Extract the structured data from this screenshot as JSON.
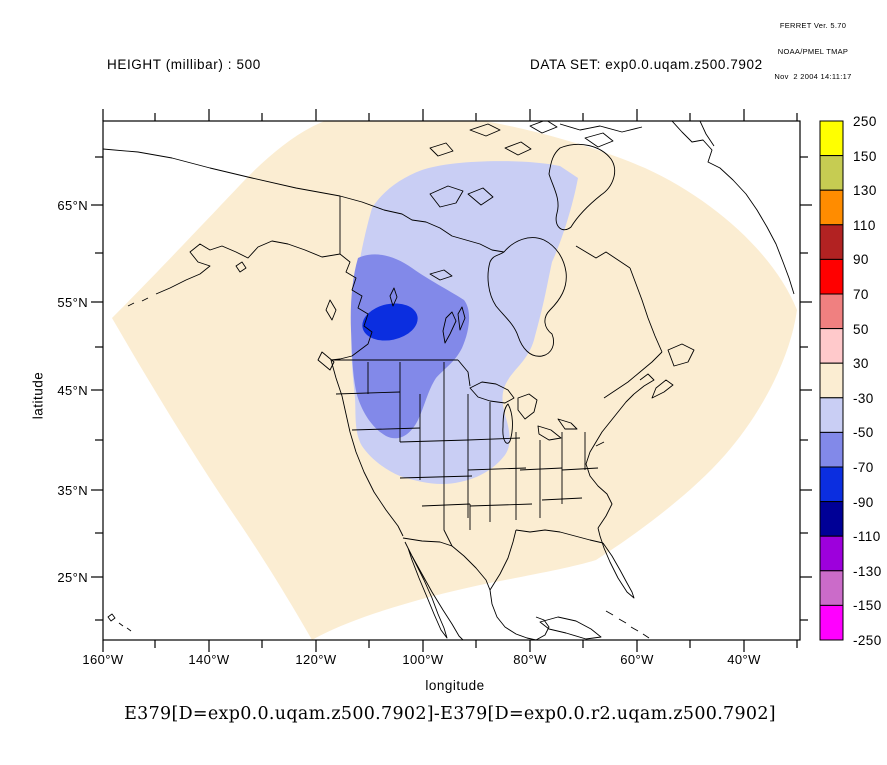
{
  "window": {
    "background": "#FFFFFF"
  },
  "ferret_header": {
    "lines": [
      "FERRET Ver. 5.70",
      "NOAA/PMEL TMAP",
      "Nov  2 2004 14:11:17"
    ]
  },
  "titles": {
    "field": "HEIGHT (millibar) : 500",
    "dataset": "DATA SET: exp0.0.uqam.z500.7902"
  },
  "caption": "E379[D=exp0.0.uqam.z500.7902]-E379[D=exp0.0.r2.uqam.z500.7902]",
  "axes": {
    "x": {
      "title": "longitude",
      "tick_labels": [
        "160°W",
        "140°W",
        "120°W",
        "100°W",
        "80°W",
        "60°W",
        "40°W"
      ]
    },
    "y": {
      "title": "latitude",
      "tick_labels": [
        "65°N",
        "55°N",
        "45°N",
        "35°N",
        "25°N"
      ]
    }
  },
  "colorbar": {
    "boundary_labels": [
      "250",
      "150",
      "130",
      "110",
      "90",
      "70",
      "50",
      "30",
      "-30",
      "-50",
      "-70",
      "-90",
      "-110",
      "-130",
      "-150",
      "-250"
    ],
    "cell_colors_top_to_bottom": [
      "#FFFF00",
      "#C6CC52",
      "#FF8C00",
      "#B22222",
      "#FF0000",
      "#F08080",
      "#FFC9CB",
      "#FBEDD2",
      "#C9CEF4",
      "#8289E9",
      "#0B2EE0",
      "#000096",
      "#9D00DC",
      "#CB6BC9",
      "#FF00FF"
    ]
  },
  "colors": {
    "cream": "#FBEDD2",
    "lavender": "#C9CEF4",
    "periwinkle": "#8289E9",
    "blue": "#0B2EE0",
    "coastline": "#000000"
  },
  "chart_data": {
    "type": "heatmap",
    "title": "HEIGHT (millibar) : 500",
    "dataset": "exp0.0.uqam.z500.7902",
    "expression": "E379[D=exp0.0.uqam.z500.7902]-E379[D=exp0.0.r2.uqam.z500.7902]",
    "xlabel": "longitude",
    "ylabel": "latitude",
    "x_range": [
      "160°W",
      "40°W"
    ],
    "y_range": [
      "25°N",
      "65°N"
    ],
    "contour_levels": [
      -250,
      -150,
      -130,
      -110,
      -90,
      -70,
      -50,
      -30,
      30,
      50,
      70,
      90,
      110,
      130,
      150,
      250
    ],
    "level_colors_low_to_high": [
      "#FF00FF",
      "#CB6BC9",
      "#9D00DC",
      "#000096",
      "#0B2EE0",
      "#8289E9",
      "#C9CEF4",
      "#FBEDD2",
      "#FFC9CB",
      "#F08080",
      "#FF0000",
      "#B22222",
      "#FF8C00",
      "#C6CC52",
      "#FFFF00"
    ],
    "filled_regions": [
      {
        "value_range": [
          -30,
          30
        ],
        "color": "#FBEDD2",
        "extent": "entire fan-shaped model domain over North America"
      },
      {
        "value_range": [
          -50,
          -30
        ],
        "color": "#C9CEF4",
        "extent": "central and eastern Canada, northern US plains, Great Lakes"
      },
      {
        "value_range": [
          -70,
          -50
        ],
        "color": "#8289E9",
        "extent": "western-central Canada (Alberta, Saskatchewan, Manitoba)"
      },
      {
        "value_range": [
          -90,
          -70
        ],
        "color": "#0B2EE0",
        "extent": "small oval minimum near 53N 105W"
      }
    ],
    "grid": false,
    "legend_position": "right-colorbar"
  }
}
